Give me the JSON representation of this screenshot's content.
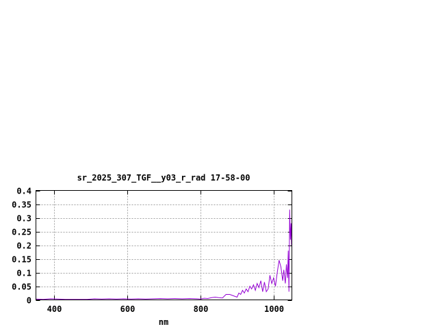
{
  "chart_data": {
    "type": "line",
    "title": "sr_2025_307_TGF__y03_r_rad 17-58-00",
    "xlabel": "nm",
    "ylabel": "",
    "xlim": [
      350,
      1050
    ],
    "ylim": [
      0,
      0.4
    ],
    "grid": true,
    "x_ticks": [
      400,
      600,
      800,
      1000
    ],
    "y_ticks": [
      0,
      0.05,
      0.1,
      0.15,
      0.2,
      0.25,
      0.3,
      0.35,
      0.4
    ],
    "x_tick_labels": [
      "400",
      "600",
      "800",
      "1000"
    ],
    "y_tick_labels": [
      "0",
      "0.05",
      "0.1",
      "0.15",
      "0.2",
      "0.25",
      "0.3",
      "0.35",
      "0.4"
    ],
    "series_color": "#9400d3",
    "series": [
      {
        "x": [
          350,
          370,
          390,
          410,
          430,
          450,
          470,
          490,
          510,
          530,
          550,
          570,
          590,
          610,
          630,
          650,
          670,
          690,
          710,
          730,
          750,
          770,
          790,
          800,
          810,
          820,
          830,
          840,
          850,
          860,
          870,
          880,
          890,
          900,
          905,
          910,
          915,
          920,
          925,
          930,
          935,
          940,
          945,
          950,
          955,
          960,
          965,
          970,
          975,
          980,
          985,
          990,
          995,
          1000,
          1005,
          1010,
          1015,
          1020,
          1025,
          1028,
          1032,
          1035,
          1038,
          1040,
          1042,
          1044,
          1046,
          1048,
          1049
        ],
        "y": [
          0.003,
          0.002,
          0.004,
          0.003,
          0.002,
          0.002,
          0.002,
          0.002,
          0.004,
          0.003,
          0.004,
          0.003,
          0.004,
          0.003,
          0.004,
          0.003,
          0.004,
          0.005,
          0.004,
          0.005,
          0.004,
          0.005,
          0.004,
          0.003,
          0.006,
          0.005,
          0.008,
          0.01,
          0.008,
          0.007,
          0.02,
          0.02,
          0.015,
          0.01,
          0.025,
          0.02,
          0.035,
          0.025,
          0.04,
          0.03,
          0.05,
          0.04,
          0.055,
          0.035,
          0.06,
          0.045,
          0.07,
          0.03,
          0.065,
          0.03,
          0.04,
          0.09,
          0.06,
          0.08,
          0.05,
          0.1,
          0.145,
          0.12,
          0.07,
          0.11,
          0.06,
          0.13,
          0.08,
          0.18,
          0.03,
          0.33,
          0.22,
          0.28,
          0.2
        ]
      }
    ]
  }
}
